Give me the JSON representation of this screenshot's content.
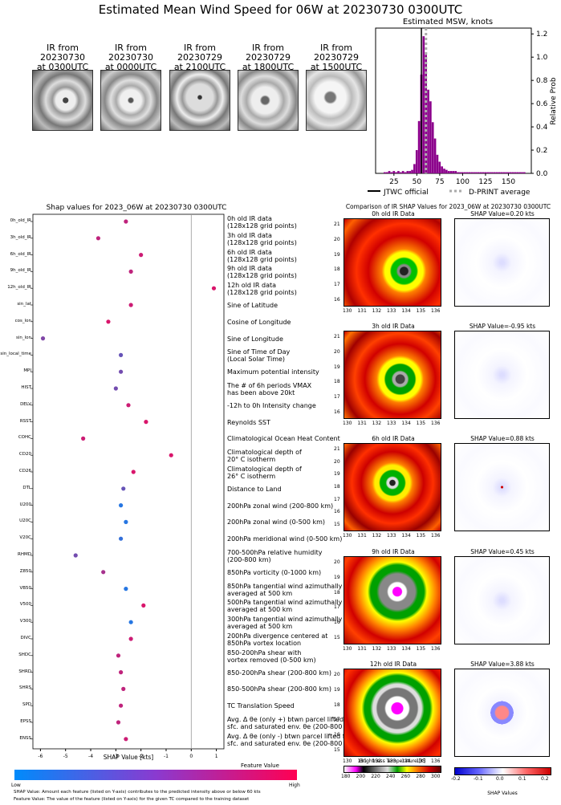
{
  "title": "Estimated Mean Wind Speed for 06W at 20230730 0300UTC",
  "ir_thumbnails": [
    {
      "line1": "IR from",
      "line2": "20230730",
      "line3": "at 0300UTC"
    },
    {
      "line1": "IR from",
      "line2": "20230730",
      "line3": "at 0000UTC"
    },
    {
      "line1": "IR from",
      "line2": "20230729",
      "line3": "at 2100UTC"
    },
    {
      "line1": "IR from",
      "line2": "20230729",
      "line3": "at 1800UTC"
    },
    {
      "line1": "IR from",
      "line2": "20230729",
      "line3": "at 1500UTC"
    }
  ],
  "histogram": {
    "title": "Estimated MSW, knots",
    "ylabel": "Relative Prob",
    "x_ticks": [
      "25",
      "50",
      "75",
      "100",
      "125",
      "150"
    ],
    "y_ticks": [
      "0.0",
      "0.2",
      "0.4",
      "0.6",
      "0.8",
      "1.0",
      "1.2"
    ],
    "legend_jtwc": "JTWC official",
    "legend_dprint": "D-PRINT average",
    "bar_color": "#8b008b"
  },
  "shap_panel": {
    "title": "Shap values for 2023_06W at 20230730 0300UTC",
    "xlabel": "SHAP Value [kts]",
    "x_ticks": [
      "-6",
      "-5",
      "-4",
      "-3",
      "-2",
      "-1",
      "0",
      "1"
    ]
  },
  "colorbar": {
    "label": "Feature Value",
    "low": "Low",
    "high": "High"
  },
  "footnotes": {
    "line1": "SHAP Value: Amount each feature (listed on Y-axis) contributes to the predicted intensity above or below 60 kts",
    "line2": "Feature Value: The value of the feature (listed on Y-axis) for the given TC compared to the training dataset"
  },
  "comparison": {
    "title": "Comparison of IR SHAP Values for 2023_06W at 20230730 0300UTC",
    "rows": [
      {
        "map_title": "0h old IR Data",
        "shap_title": "SHAP Value=0.20 kts",
        "y_ticks": [
          "21",
          "20",
          "19",
          "18",
          "17",
          "16"
        ]
      },
      {
        "map_title": "3h old IR Data",
        "shap_title": "SHAP Value=-0.95 kts",
        "y_ticks": [
          "21",
          "20",
          "19",
          "18",
          "17",
          "16"
        ]
      },
      {
        "map_title": "6h old IR Data",
        "shap_title": "SHAP Value=0.88 kts",
        "y_ticks": [
          "21",
          "20",
          "19",
          "18",
          "17",
          "16",
          "15"
        ]
      },
      {
        "map_title": "9h old IR Data",
        "shap_title": "SHAP Value=0.45 kts",
        "y_ticks": [
          "20",
          "19",
          "18",
          "17",
          "16",
          "15"
        ]
      },
      {
        "map_title": "12h old IR Data",
        "shap_title": "SHAP Value=3.88 kts",
        "y_ticks": [
          "20",
          "19",
          "18",
          "17",
          "16",
          "15"
        ]
      }
    ],
    "lon_ticks_a": [
      "130",
      "131",
      "132",
      "133",
      "134",
      "135",
      "136"
    ],
    "lon_ticks_b": [
      "130",
      "131",
      "132",
      "133",
      "134",
      "135",
      "136"
    ],
    "bt_label": "Brightness Temperature [K]",
    "bt_ticks": [
      "180",
      "200",
      "220",
      "240",
      "260",
      "280",
      "300"
    ],
    "shap_cb_label": "SHAP Values",
    "shap_cb_ticks": [
      "-0.2",
      "-0.1",
      "0.0",
      "0.1",
      "0.2"
    ]
  },
  "chart_data": [
    {
      "type": "bar",
      "title": "Estimated MSW, knots",
      "xlabel": "",
      "ylabel": "Relative Prob",
      "xlim": [
        5,
        175
      ],
      "ylim": [
        0,
        1.25
      ],
      "bin_width": 2.5,
      "x": [
        15,
        17.5,
        20,
        22.5,
        25,
        27.5,
        30,
        32.5,
        35,
        37.5,
        40,
        42.5,
        45,
        47.5,
        50,
        52.5,
        55,
        57.5,
        60,
        62.5,
        65,
        67.5,
        70,
        72.5,
        75,
        77.5,
        80,
        82.5,
        85,
        87.5,
        90,
        92.5,
        95,
        97.5,
        100,
        102.5,
        105,
        107.5,
        110,
        112.5,
        115,
        117.5,
        120,
        122.5,
        125,
        127.5,
        130,
        132.5,
        135,
        137.5,
        140,
        142.5,
        145,
        147.5,
        150,
        152.5,
        155,
        157.5,
        160,
        162.5,
        165,
        167.5
      ],
      "values": [
        0.01,
        0.01,
        0.02,
        0.01,
        0.02,
        0.01,
        0.02,
        0.01,
        0.02,
        0.01,
        0.02,
        0.02,
        0.03,
        0.08,
        0.2,
        0.45,
        0.85,
        1.18,
        1.02,
        0.72,
        0.62,
        0.44,
        0.3,
        0.16,
        0.1,
        0.06,
        0.04,
        0.03,
        0.02,
        0.02,
        0.02,
        0.02,
        0.01,
        0.01,
        0.01,
        0.01,
        0.01,
        0.01,
        0.01,
        0.01,
        0.01,
        0.01,
        0.01,
        0.01,
        0.01,
        0.01,
        0.01,
        0.01,
        0.01,
        0.01,
        0.01,
        0.01,
        0.01,
        0.01,
        0.01,
        0.01,
        0.01,
        0.01,
        0.01,
        0.01,
        0.01,
        0.01
      ],
      "jtwc_official": 55,
      "dprint_average": 60
    },
    {
      "type": "scatter",
      "title": "Shap values for 2023_06W at 20230730 0300UTC",
      "xlabel": "SHAP Value [kts]",
      "xlim": [
        -6.3,
        1.3
      ],
      "features": [
        {
          "name": "0h_old_IR",
          "desc": [
            "0h old IR data",
            "(128x128 grid points)"
          ],
          "shap": -2.6,
          "feature_value": 0.75
        },
        {
          "name": "3h_old_IR",
          "desc": [
            "3h old IR data",
            "(128x128 grid points)"
          ],
          "shap": -3.7,
          "feature_value": 0.75
        },
        {
          "name": "6h_old_IR",
          "desc": [
            "6h old IR data",
            "(128x128 grid points)"
          ],
          "shap": -2.0,
          "feature_value": 0.8
        },
        {
          "name": "9h_old_IR",
          "desc": [
            "9h old IR data",
            "(128x128 grid points)"
          ],
          "shap": -2.4,
          "feature_value": 0.75
        },
        {
          "name": "12h_old_IR",
          "desc": [
            "12h old IR data",
            "(128x128 grid points)"
          ],
          "shap": 0.9,
          "feature_value": 0.85
        },
        {
          "name": "sin_lat",
          "desc": [
            "Sine of Latitude"
          ],
          "shap": -2.4,
          "feature_value": 0.8
        },
        {
          "name": "cos_lon",
          "desc": [
            "Cosine of Longitude"
          ],
          "shap": -3.3,
          "feature_value": 0.85
        },
        {
          "name": "sin_lon",
          "desc": [
            "Sine of Longitude"
          ],
          "shap": -5.9,
          "feature_value": 0.5
        },
        {
          "name": "sin_local_time",
          "desc": [
            "Sine of Time of Day",
            "(Local Solar Time)"
          ],
          "shap": -2.8,
          "feature_value": 0.4
        },
        {
          "name": "MPI",
          "desc": [
            "Maximum potential intensity"
          ],
          "shap": -2.8,
          "feature_value": 0.45
        },
        {
          "name": "HIST",
          "desc": [
            "The # of 6h periods VMAX",
            "has been above 20kt"
          ],
          "shap": -3.0,
          "feature_value": 0.45
        },
        {
          "name": "DELV",
          "desc": [
            "-12h to 0h Intensity change"
          ],
          "shap": -2.5,
          "feature_value": 0.8
        },
        {
          "name": "RSST",
          "desc": [
            "Reynolds SST"
          ],
          "shap": -1.8,
          "feature_value": 0.85
        },
        {
          "name": "COHC",
          "desc": [
            "Climatological Ocean Heat Content"
          ],
          "shap": -4.3,
          "feature_value": 0.8
        },
        {
          "name": "CD20",
          "desc": [
            "Climatological depth of",
            "20° C isotherm"
          ],
          "shap": -0.8,
          "feature_value": 0.85
        },
        {
          "name": "CD26",
          "desc": [
            "Climatological depth of",
            "26° C isotherm"
          ],
          "shap": -2.3,
          "feature_value": 0.85
        },
        {
          "name": "DTL",
          "desc": [
            "Distance to Land"
          ],
          "shap": -2.7,
          "feature_value": 0.4
        },
        {
          "name": "U200",
          "desc": [
            "200hPa zonal wind (200-800 km)"
          ],
          "shap": -2.8,
          "feature_value": 0.15
        },
        {
          "name": "U20C",
          "desc": [
            "200hPa zonal wind (0-500 km)"
          ],
          "shap": -2.6,
          "feature_value": 0.15
        },
        {
          "name": "V20C",
          "desc": [
            "200hPa meridional wind (0-500 km)"
          ],
          "shap": -2.8,
          "feature_value": 0.2
        },
        {
          "name": "RHMD",
          "desc": [
            "700-500hPa relative humidity",
            "(200-800 km)"
          ],
          "shap": -4.6,
          "feature_value": 0.45
        },
        {
          "name": "Z850",
          "desc": [
            "850hPa vorticity (0-1000 km)"
          ],
          "shap": -3.5,
          "feature_value": 0.65
        },
        {
          "name": "VB50",
          "desc": [
            "850hPa tangential wind azimuthally",
            "averaged at 500 km"
          ],
          "shap": -2.6,
          "feature_value": 0.15
        },
        {
          "name": "V500",
          "desc": [
            "500hPa tangential wind azimuthally",
            "averaged at 500 km"
          ],
          "shap": -1.9,
          "feature_value": 0.85
        },
        {
          "name": "V300",
          "desc": [
            "300hPa tangential wind azimuthally",
            "averaged at 500 km"
          ],
          "shap": -2.4,
          "feature_value": 0.15
        },
        {
          "name": "DIVC",
          "desc": [
            "200hPa divergence centered at",
            "850hPa vortex location"
          ],
          "shap": -2.4,
          "feature_value": 0.8
        },
        {
          "name": "SHDC",
          "desc": [
            "850-200hPa shear with",
            "vortex removed (0-500 km)"
          ],
          "shap": -2.9,
          "feature_value": 0.75
        },
        {
          "name": "SHRD",
          "desc": [
            "850-200hPa shear (200-800 km)"
          ],
          "shap": -2.8,
          "feature_value": 0.75
        },
        {
          "name": "SHRS",
          "desc": [
            "850-500hPa shear (200-800 km)"
          ],
          "shap": -2.7,
          "feature_value": 0.75
        },
        {
          "name": "SPD",
          "desc": [
            "TC Translation Speed"
          ],
          "shap": -2.8,
          "feature_value": 0.75
        },
        {
          "name": "EPSS",
          "desc": [
            "Avg. Δ θe (only +) btwn parcel lifted from",
            "sfc. and saturated env. θe (200-800 km)"
          ],
          "shap": -2.9,
          "feature_value": 0.75
        },
        {
          "name": "ENSS",
          "desc": [
            "Avg. Δ θe (only -) btwn parcel lifted from",
            "sfc. and saturated env. θe (200-800 km)"
          ],
          "shap": -2.6,
          "feature_value": 0.8
        }
      ]
    }
  ]
}
